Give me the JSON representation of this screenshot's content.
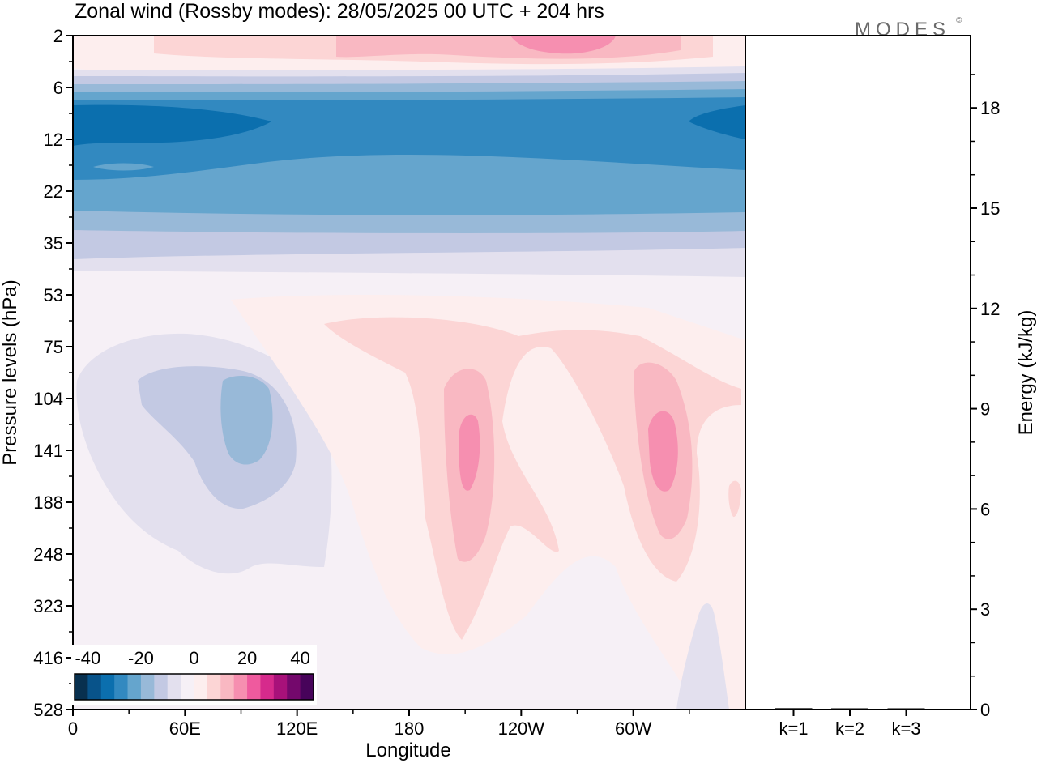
{
  "title": "Zonal wind (Rossby modes):  28/05/2025  00 UTC  + 204 hrs",
  "logo_text": "MODES",
  "logo_mark": "©",
  "chart_data": [
    {
      "type": "heatmap",
      "title": "Zonal wind (Rossby modes):  28/05/2025  00 UTC  + 204 hrs",
      "xlabel": "Longitude",
      "ylabel": "Pressure levels (hPa)",
      "x_ticks": [
        "0",
        "60E",
        "120E",
        "180",
        "120W",
        "60W"
      ],
      "x_tick_degrees": [
        0,
        60,
        120,
        180,
        240,
        300
      ],
      "xlim": [
        0,
        360
      ],
      "y_ticks": [
        "2",
        "6",
        "12",
        "22",
        "35",
        "53",
        "75",
        "104",
        "141",
        "188",
        "248",
        "323",
        "416",
        "528"
      ],
      "y_scale": "level-index",
      "colorbar": {
        "tick_labels": [
          "-40",
          "-20",
          "0",
          "20",
          "40"
        ],
        "range": [
          -45,
          45
        ],
        "colors": [
          "#08304f",
          "#08538a",
          "#0b6fae",
          "#3289c0",
          "#65a5cd",
          "#98b9d8",
          "#c3c9e3",
          "#e3e0ee",
          "#f6f0f6",
          "#fdeeee",
          "#fcd5d5",
          "#f9b8c2",
          "#f68fb0",
          "#ef5a9e",
          "#d62a8c",
          "#a8117a",
          "#74086c",
          "#47035a"
        ]
      },
      "features": [
        {
          "desc": "strong easterlies",
          "lon_range": [
            0,
            360
          ],
          "level_range": [
            6,
            35
          ],
          "peak_value": -40
        },
        {
          "desc": "weak westerlies at top",
          "lon_range": [
            0,
            360
          ],
          "level_range": [
            2,
            5
          ],
          "peak_value": 20
        },
        {
          "desc": "easterly cell",
          "lon_center": 85,
          "level_center": 141,
          "peak_value": -20
        },
        {
          "desc": "westerly jet",
          "lon_center": 210,
          "level_center": 141,
          "peak_value": 25
        },
        {
          "desc": "westerly jet",
          "lon_center": 315,
          "level_center": 141,
          "peak_value": 25
        }
      ],
      "grid": false,
      "legend": "colorbar bottom-left"
    },
    {
      "type": "bar",
      "ylabel": "Energy (kJ/kg)",
      "categories": [
        "k=1",
        "k=2",
        "k=3"
      ],
      "values": [
        0.04,
        0.02,
        0.02
      ],
      "ylim": [
        0,
        20
      ],
      "y_ticks": [
        "0",
        "3",
        "6",
        "9",
        "12",
        "15",
        "18"
      ],
      "grid": false
    }
  ]
}
